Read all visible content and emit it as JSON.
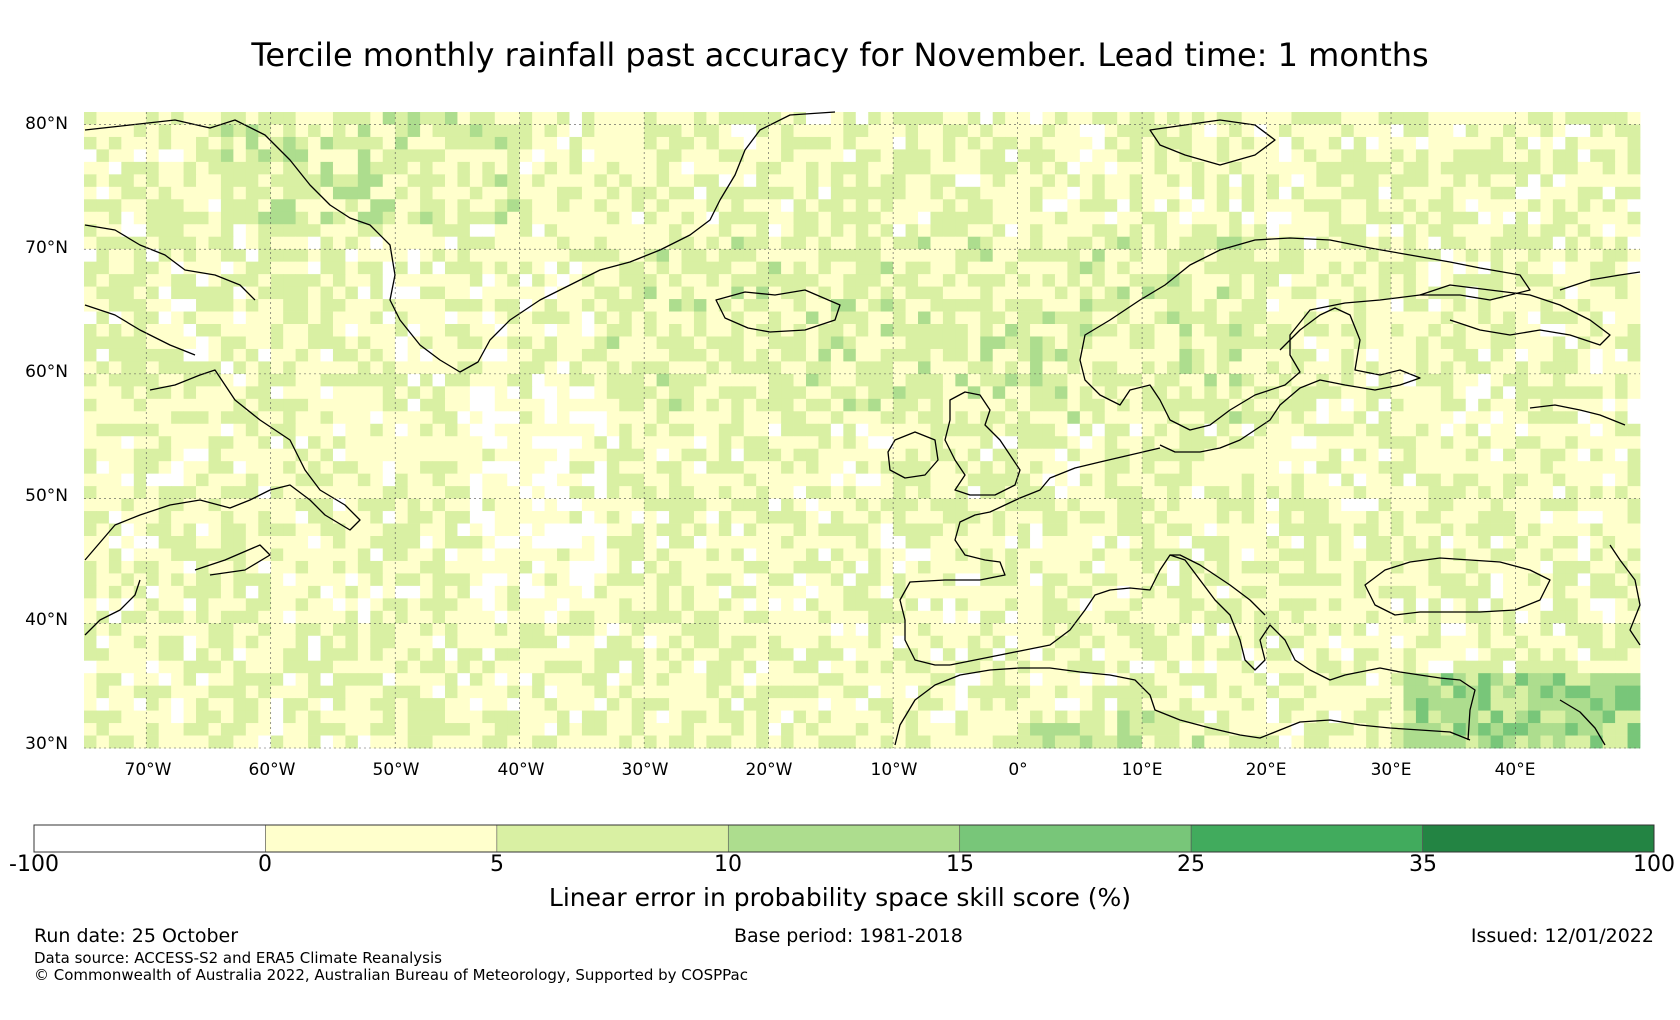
{
  "title": "Tercile monthly rainfall past accuracy for November. Lead time: 1 months",
  "map": {
    "lon_range": [
      -75,
      50
    ],
    "lat_range": [
      30,
      81
    ],
    "lat_ticks": [
      {
        "value": 80,
        "label": "80°N"
      },
      {
        "value": 70,
        "label": "70°N"
      },
      {
        "value": 60,
        "label": "60°N"
      },
      {
        "value": 50,
        "label": "50°N"
      },
      {
        "value": 40,
        "label": "40°N"
      },
      {
        "value": 30,
        "label": "30°N"
      }
    ],
    "lon_ticks": [
      {
        "value": -70,
        "label": "70°W"
      },
      {
        "value": -60,
        "label": "60°W"
      },
      {
        "value": -50,
        "label": "50°W"
      },
      {
        "value": -40,
        "label": "40°W"
      },
      {
        "value": -30,
        "label": "30°W"
      },
      {
        "value": -20,
        "label": "20°W"
      },
      {
        "value": -10,
        "label": "10°W"
      },
      {
        "value": 0,
        "label": "0°"
      },
      {
        "value": 10,
        "label": "10°E"
      },
      {
        "value": 20,
        "label": "20°E"
      },
      {
        "value": 30,
        "label": "30°E"
      },
      {
        "value": 40,
        "label": "40°E"
      }
    ]
  },
  "colorbar": {
    "bounds": [
      "-100",
      "0",
      "5",
      "10",
      "15",
      "25",
      "35",
      "100"
    ],
    "colors": [
      "#ffffff",
      "#ffffcc",
      "#d9f0a3",
      "#addd8e",
      "#78c679",
      "#41ab5d",
      "#238443"
    ],
    "label": "Linear error in probability space skill score (%)"
  },
  "footer": {
    "run_date": "Run date: 25 October",
    "base_period": "Base period: 1981-2018",
    "issued": "Issued: 12/01/2022",
    "data_source": "Data source: ACCESS-S2 and ERA5 Climate Reanalysis",
    "copyright": "© Commonwealth of Australia 2022, Australian Bureau of Meteorology, Supported by COSPPac"
  }
}
